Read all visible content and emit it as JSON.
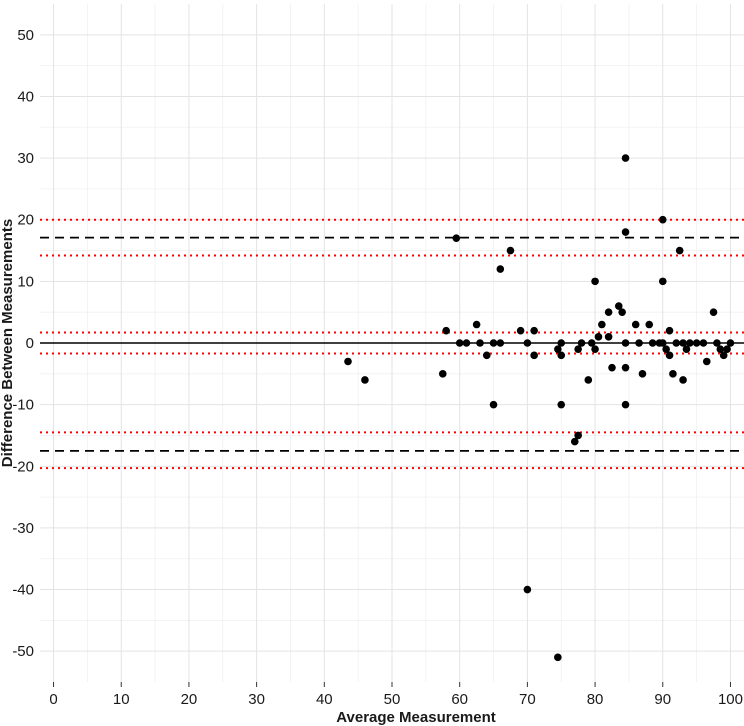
{
  "chart_data": {
    "type": "scatter",
    "title": "",
    "xlabel": "Average Measurement",
    "ylabel": "Difference Between Measurements",
    "xlim": [
      -2,
      102
    ],
    "ylim": [
      -55,
      55
    ],
    "xticks": [
      0,
      10,
      20,
      30,
      40,
      50,
      60,
      70,
      80,
      90,
      100
    ],
    "yticks": [
      -50,
      -40,
      -30,
      -20,
      -10,
      0,
      10,
      20,
      30,
      40,
      50
    ],
    "grid": true,
    "point_color": "#000000",
    "reference_lines": [
      {
        "y": 0,
        "style": "solid",
        "color": "#000000"
      },
      {
        "y": 17.1,
        "style": "dashed",
        "color": "#000000"
      },
      {
        "y": -17.5,
        "style": "dashed",
        "color": "#000000"
      },
      {
        "y": 20.0,
        "style": "dotted",
        "color": "#ff0000"
      },
      {
        "y": 14.2,
        "style": "dotted",
        "color": "#ff0000"
      },
      {
        "y": 1.7,
        "style": "dotted",
        "color": "#ff0000"
      },
      {
        "y": -1.7,
        "style": "dotted",
        "color": "#ff0000"
      },
      {
        "y": -14.5,
        "style": "dotted",
        "color": "#ff0000"
      },
      {
        "y": -20.3,
        "style": "dotted",
        "color": "#ff0000"
      }
    ],
    "points": [
      {
        "x": 43.5,
        "y": -3
      },
      {
        "x": 46,
        "y": -6
      },
      {
        "x": 57.5,
        "y": -5
      },
      {
        "x": 58,
        "y": 2
      },
      {
        "x": 59.5,
        "y": 17
      },
      {
        "x": 60,
        "y": 0
      },
      {
        "x": 61,
        "y": 0
      },
      {
        "x": 62.5,
        "y": 3
      },
      {
        "x": 63,
        "y": 0
      },
      {
        "x": 64,
        "y": -2
      },
      {
        "x": 65,
        "y": -10
      },
      {
        "x": 65,
        "y": 0
      },
      {
        "x": 66,
        "y": 12
      },
      {
        "x": 66,
        "y": 0
      },
      {
        "x": 67.5,
        "y": 15
      },
      {
        "x": 69,
        "y": 2
      },
      {
        "x": 70,
        "y": 0
      },
      {
        "x": 70,
        "y": -40
      },
      {
        "x": 71,
        "y": 2
      },
      {
        "x": 71,
        "y": -2
      },
      {
        "x": 74.5,
        "y": -51
      },
      {
        "x": 74.5,
        "y": -1
      },
      {
        "x": 75,
        "y": -10
      },
      {
        "x": 75,
        "y": -2
      },
      {
        "x": 75,
        "y": 0
      },
      {
        "x": 77,
        "y": -16
      },
      {
        "x": 77.5,
        "y": -15
      },
      {
        "x": 77.5,
        "y": -1
      },
      {
        "x": 78,
        "y": 0
      },
      {
        "x": 79,
        "y": -6
      },
      {
        "x": 79.5,
        "y": 0
      },
      {
        "x": 80,
        "y": 10
      },
      {
        "x": 80,
        "y": -1
      },
      {
        "x": 80.5,
        "y": 1
      },
      {
        "x": 81,
        "y": 3
      },
      {
        "x": 82,
        "y": 5
      },
      {
        "x": 82,
        "y": 1
      },
      {
        "x": 82.5,
        "y": -4
      },
      {
        "x": 83.5,
        "y": 6
      },
      {
        "x": 84,
        "y": 5
      },
      {
        "x": 84.5,
        "y": 30
      },
      {
        "x": 84.5,
        "y": 18
      },
      {
        "x": 84.5,
        "y": 0
      },
      {
        "x": 84.5,
        "y": -4
      },
      {
        "x": 84.5,
        "y": -10
      },
      {
        "x": 86,
        "y": 3
      },
      {
        "x": 86.5,
        "y": 0
      },
      {
        "x": 87,
        "y": -5
      },
      {
        "x": 88,
        "y": 3
      },
      {
        "x": 88.5,
        "y": 0
      },
      {
        "x": 89.5,
        "y": 0
      },
      {
        "x": 90,
        "y": 20
      },
      {
        "x": 90,
        "y": 10
      },
      {
        "x": 90,
        "y": 0
      },
      {
        "x": 90.5,
        "y": -1
      },
      {
        "x": 91,
        "y": 2
      },
      {
        "x": 91,
        "y": -2
      },
      {
        "x": 91.5,
        "y": -5
      },
      {
        "x": 92,
        "y": 0
      },
      {
        "x": 92.5,
        "y": 15
      },
      {
        "x": 93,
        "y": -6
      },
      {
        "x": 93,
        "y": 0
      },
      {
        "x": 93.5,
        "y": -1
      },
      {
        "x": 94,
        "y": 0
      },
      {
        "x": 95,
        "y": 0
      },
      {
        "x": 96,
        "y": 0
      },
      {
        "x": 96.5,
        "y": -3
      },
      {
        "x": 97.5,
        "y": 5
      },
      {
        "x": 98,
        "y": 0
      },
      {
        "x": 98.5,
        "y": -1
      },
      {
        "x": 99,
        "y": -2
      },
      {
        "x": 99.5,
        "y": -1
      },
      {
        "x": 100,
        "y": 0
      }
    ]
  }
}
